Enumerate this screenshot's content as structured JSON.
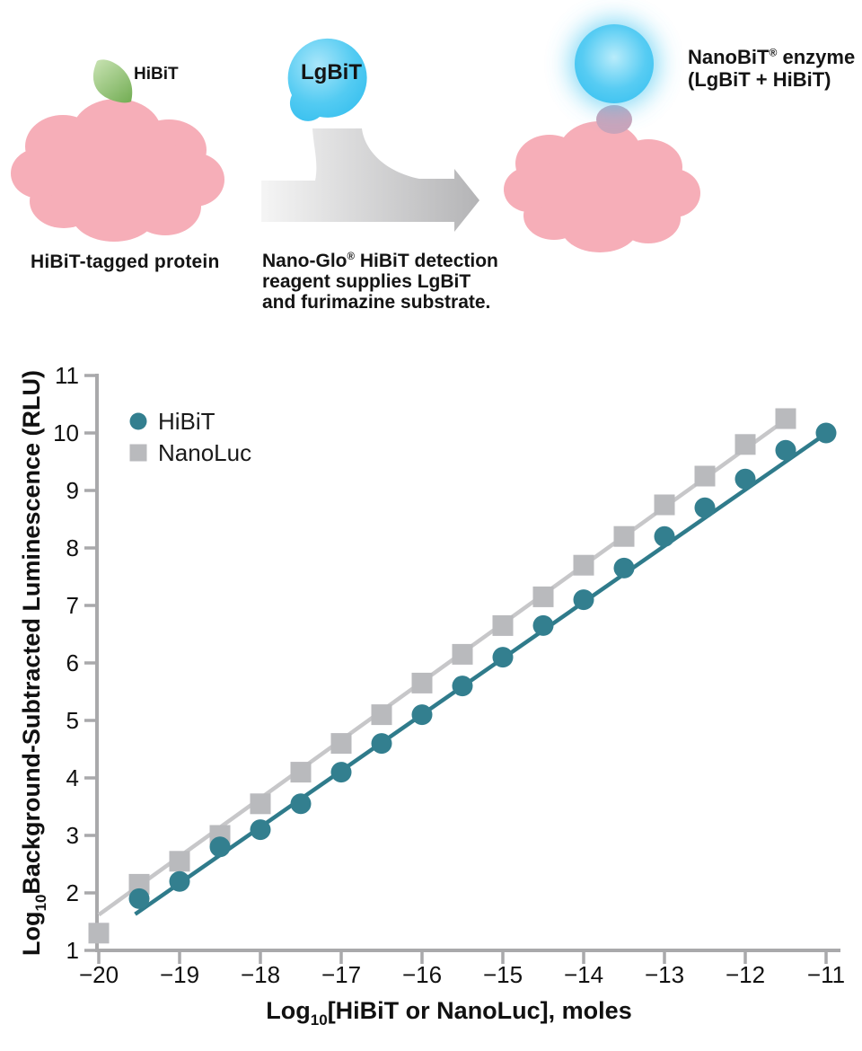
{
  "diagram": {
    "tag_label": "HiBiT",
    "lgbit_label": "LgBiT",
    "left_caption": "HiBiT-tagged protein",
    "arrow_caption": {
      "pre": "Nano-Glo",
      "reg": "®",
      "post": " HiBiT detection",
      "line2": "reagent supplies LgBiT",
      "line3": "and furimazine substrate."
    },
    "nanobit_caption": {
      "pre": "NanoBiT",
      "reg": "®",
      "post": " enzyme",
      "line2": "(LgBiT + HiBiT)"
    },
    "colors": {
      "protein_pink": "#f6aeb8",
      "tag_green_light": "#c4e0ae",
      "tag_green_dark": "#74ae55",
      "lgbit_blue": "#45c4ef",
      "glow_blue": "#49c7f1",
      "bound_tag_mauve": "#cba4ba",
      "arrow_gray_light": "#f5f5f5",
      "arrow_gray_dark": "#b4b4b6"
    }
  },
  "chart_data": {
    "type": "scatter",
    "title": "",
    "xlabel": {
      "pre": "Log",
      "sub": "10",
      "post": "[HiBiT or NanoLuc], moles"
    },
    "ylabel": {
      "pre": "Log",
      "sub": "10",
      "post": "Background-Subtracted Luminescence (RLU)"
    },
    "xlim": [
      -20,
      -11
    ],
    "ylim": [
      1,
      11
    ],
    "x_ticks": [
      -20,
      -19,
      -18,
      -17,
      -16,
      -15,
      -14,
      -13,
      -12,
      -11
    ],
    "y_ticks": [
      1,
      2,
      3,
      4,
      5,
      6,
      7,
      8,
      9,
      10,
      11
    ],
    "grid": false,
    "legend_position": "upper-left-inside",
    "axis_color": "#a9a9ab",
    "tick_label_color": "#111111",
    "series": [
      {
        "name": "HiBiT",
        "marker": "circle",
        "color": "#337f8f",
        "line_color": "#2f7b8b",
        "points": [
          [
            -19.5,
            1.9
          ],
          [
            -19.0,
            2.2
          ],
          [
            -18.5,
            2.8
          ],
          [
            -18.0,
            3.1
          ],
          [
            -17.5,
            3.55
          ],
          [
            -17.0,
            4.1
          ],
          [
            -16.5,
            4.6
          ],
          [
            -16.0,
            5.1
          ],
          [
            -15.5,
            5.6
          ],
          [
            -15.0,
            6.1
          ],
          [
            -14.5,
            6.65
          ],
          [
            -14.0,
            7.1
          ],
          [
            -13.5,
            7.65
          ],
          [
            -13.0,
            8.2
          ],
          [
            -12.5,
            8.7
          ],
          [
            -12.0,
            9.2
          ],
          [
            -11.5,
            9.7
          ],
          [
            -11.0,
            10.0
          ]
        ],
        "trend_line": [
          [
            -19.55,
            1.63
          ],
          [
            -10.97,
            10.02
          ]
        ]
      },
      {
        "name": "NanoLuc",
        "marker": "square",
        "color": "#b9babd",
        "line_color": "#c7c7c9",
        "points": [
          [
            -20.0,
            1.3
          ],
          [
            -19.5,
            2.15
          ],
          [
            -19.0,
            2.55
          ],
          [
            -18.5,
            3.0
          ],
          [
            -18.0,
            3.55
          ],
          [
            -17.5,
            4.1
          ],
          [
            -17.0,
            4.6
          ],
          [
            -16.5,
            5.1
          ],
          [
            -16.0,
            5.65
          ],
          [
            -15.5,
            6.15
          ],
          [
            -15.0,
            6.65
          ],
          [
            -14.5,
            7.15
          ],
          [
            -14.0,
            7.7
          ],
          [
            -13.5,
            8.2
          ],
          [
            -13.0,
            8.75
          ],
          [
            -12.5,
            9.25
          ],
          [
            -12.0,
            9.8
          ],
          [
            -11.5,
            10.25
          ]
        ],
        "trend_line": [
          [
            -20.0,
            1.62
          ],
          [
            -11.45,
            10.28
          ]
        ]
      }
    ]
  }
}
